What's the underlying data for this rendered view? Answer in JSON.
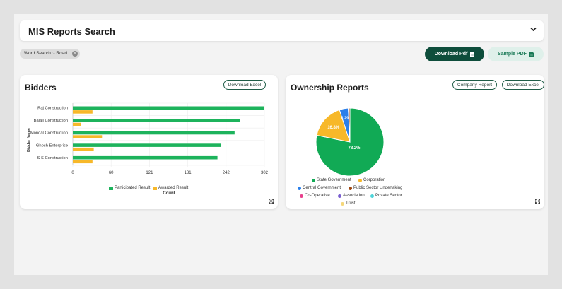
{
  "search_panel": {
    "title": "MIS Reports Search"
  },
  "filter_chip": {
    "label": "Word Search :- Road"
  },
  "actions": {
    "download_pdf": "Download Pdf",
    "sample_pdf": "Sample PDF"
  },
  "bidders": {
    "title": "Bidders",
    "download_excel": "Download Excel"
  },
  "ownership": {
    "title": "Ownership Reports",
    "company_report": "Company Report",
    "download_excel": "Download Excel"
  },
  "colors": {
    "participated": "#1db35c",
    "awarded": "#f7b829",
    "state_government": "#11aa55",
    "corporation": "#f7b829",
    "central_government": "#2a7fea",
    "psu": "#a0460e",
    "co_operative": "#e83e8c",
    "association": "#7a5fd0",
    "private_sector": "#4fd4d9",
    "trust": "#f5d77a"
  },
  "chart_data": [
    {
      "type": "bar",
      "orientation": "horizontal",
      "categories": [
        "Raj Construction",
        "Balaji Construction",
        "Mondal Construction",
        "Ghosh Enterprise",
        "S S Construction"
      ],
      "series": [
        {
          "name": "Participated Result",
          "values": [
            302,
            263,
            255,
            234,
            228
          ]
        },
        {
          "name": "Awarded Result",
          "values": [
            31,
            13,
            46,
            33,
            31
          ]
        }
      ],
      "xlabel": "Count",
      "ylabel": "Bidder Name",
      "xticks": [
        "0",
        "60",
        "121",
        "181",
        "242",
        "302"
      ],
      "xlim": [
        0,
        302
      ],
      "legend": "bottom"
    },
    {
      "type": "pie",
      "slices": [
        {
          "name": "State Government",
          "value": 78.2,
          "label": "78.2%"
        },
        {
          "name": "Corporation",
          "value": 16.8,
          "label": "16.8%"
        },
        {
          "name": "Central Government",
          "value": 4.2,
          "label": "4.2%"
        },
        {
          "name": "Public Sector Undertaking",
          "value": 0.8,
          "label": ""
        },
        {
          "name": "Co-Operative",
          "value": 0,
          "label": ""
        },
        {
          "name": "Association",
          "value": 0,
          "label": ""
        },
        {
          "name": "Private Sector",
          "value": 0,
          "label": ""
        },
        {
          "name": "Trust",
          "value": 0,
          "label": ""
        }
      ],
      "legend": "bottom"
    }
  ]
}
